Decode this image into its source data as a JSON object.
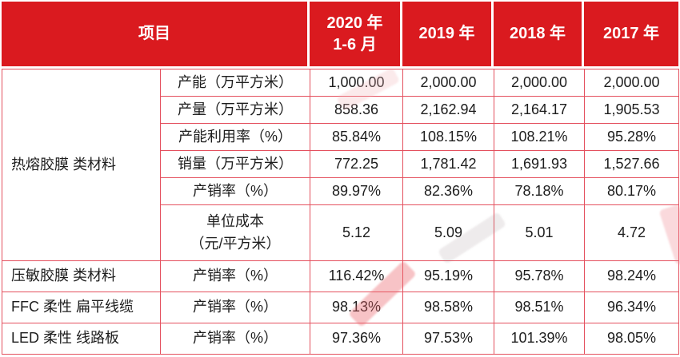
{
  "colors": {
    "header_bg": "#da1a1f",
    "grid": "#e4505e",
    "text": "#1d1d1d",
    "header_text": "#ffffff"
  },
  "table": {
    "header": {
      "item_label": "项目",
      "periods": [
        "2020 年\n1-6 月",
        "2019 年",
        "2018 年",
        "2017 年"
      ]
    },
    "groups": [
      {
        "name": "热熔胶膜 类材料",
        "rows": [
          {
            "metric": "产能（万平方米）",
            "values": [
              "1,000.00",
              "2,000.00",
              "2,000.00",
              "2,000.00"
            ]
          },
          {
            "metric": "产量（万平方米）",
            "values": [
              "858.36",
              "2,162.94",
              "2,164.17",
              "1,905.53"
            ]
          },
          {
            "metric": "产能利用率（%）",
            "values": [
              "85.84%",
              "108.15%",
              "108.21%",
              "95.28%"
            ]
          },
          {
            "metric": "销量（万平方米）",
            "values": [
              "772.25",
              "1,781.42",
              "1,691.93",
              "1,527.66"
            ]
          },
          {
            "metric": "产销率（%）",
            "values": [
              "89.97%",
              "82.36%",
              "78.18%",
              "80.17%"
            ]
          },
          {
            "metric": "单位成本\n（元/平方米）",
            "values": [
              "5.12",
              "5.09",
              "5.01",
              "4.72"
            ]
          }
        ]
      },
      {
        "name": "压敏胶膜 类材料",
        "rows": [
          {
            "metric": "产销率（%）",
            "values": [
              "116.42%",
              "95.19%",
              "95.78%",
              "98.24%"
            ]
          }
        ]
      },
      {
        "name": "FFC 柔性 扁平线缆",
        "rows": [
          {
            "metric": "产销率（%）",
            "values": [
              "98.13%",
              "98.58%",
              "98.51%",
              "96.34%"
            ]
          }
        ]
      },
      {
        "name": "LED 柔性 线路板",
        "rows": [
          {
            "metric": "产销率（%）",
            "values": [
              "97.36%",
              "97.53%",
              "101.39%",
              "98.05%"
            ]
          }
        ]
      }
    ]
  }
}
